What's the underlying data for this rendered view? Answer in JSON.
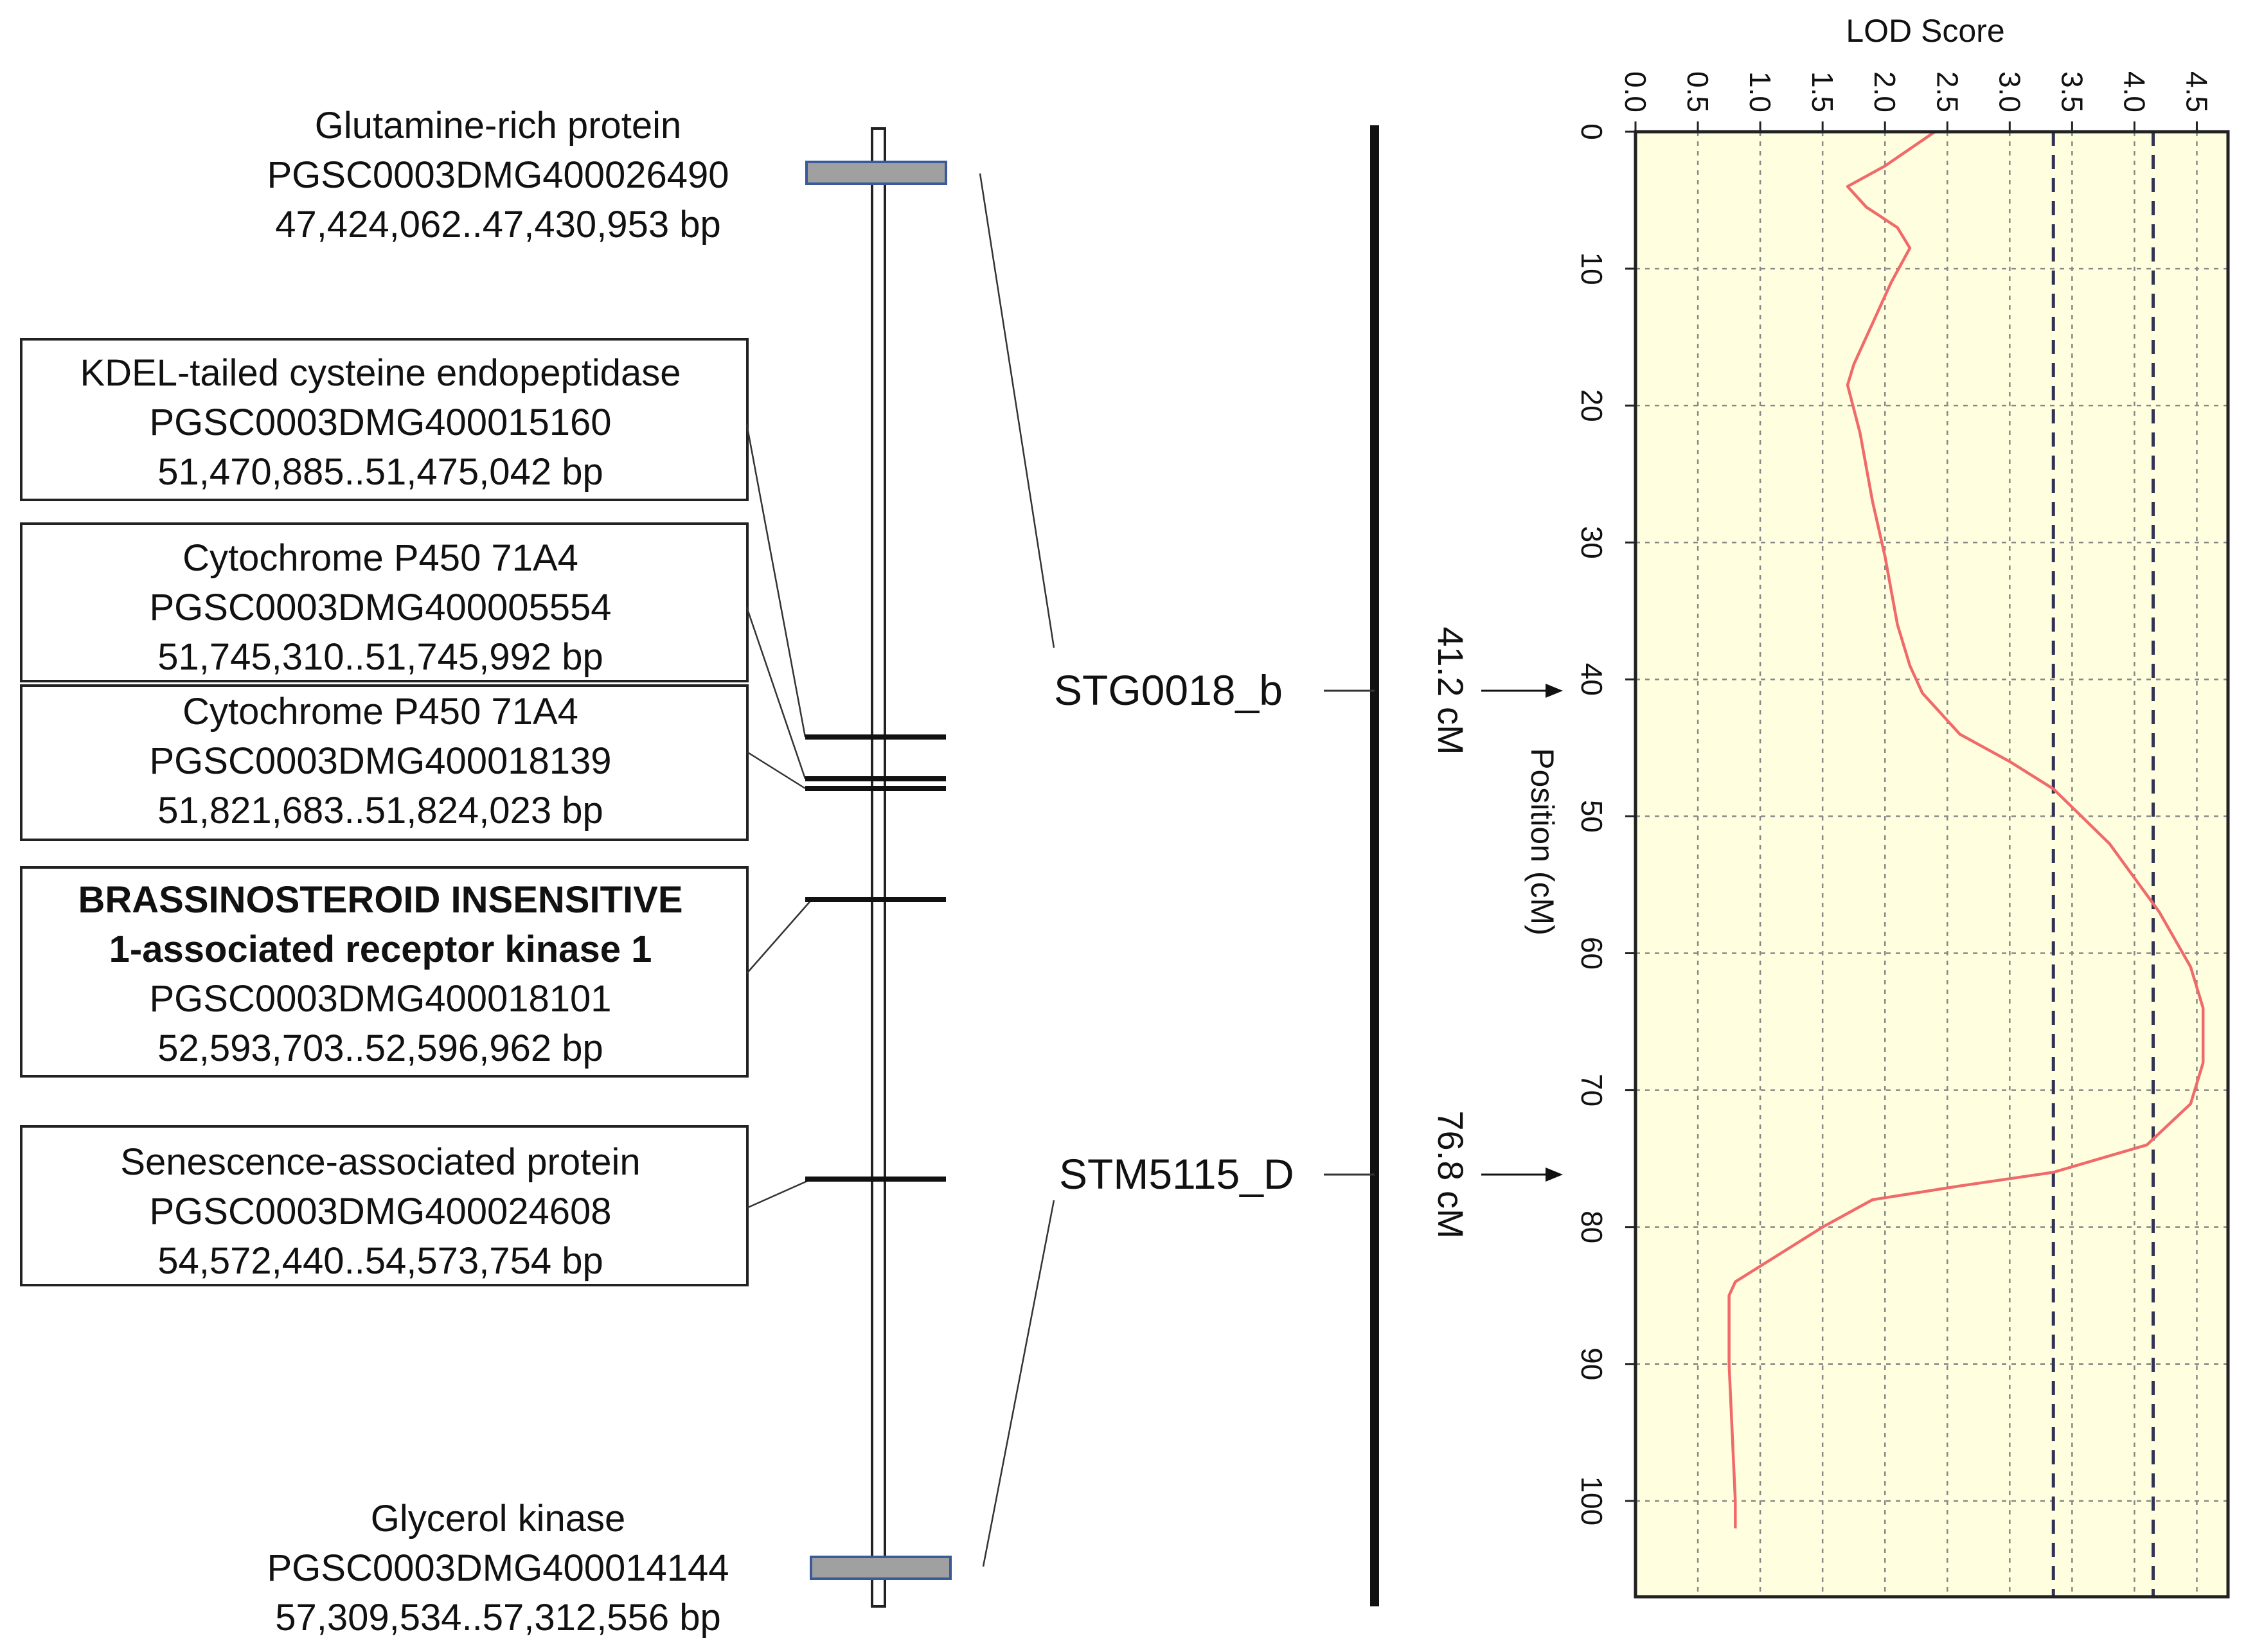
{
  "genes": [
    {
      "lines": [
        "Glutamine-rich protein",
        "PGSC0003DMG400026490",
        "47,424,062..47,430,953 bp"
      ],
      "boxed": false
    },
    {
      "lines": [
        "KDEL-tailed cysteine endopeptidase",
        "PGSC0003DMG400015160",
        "51,470,885..51,475,042 bp"
      ],
      "boxed": true
    },
    {
      "lines": [
        "Cytochrome P450 71A4",
        "PGSC0003DMG400005554",
        "51,745,310..51,745,992 bp"
      ],
      "boxed": true
    },
    {
      "lines": [
        "Cytochrome P450 71A4",
        "PGSC0003DMG400018139",
        "51,821,683..51,824,023 bp"
      ],
      "boxed": true
    },
    {
      "lines": [
        "BRASSINOSTEROID INSENSITIVE",
        "1-associated receptor kinase 1",
        "PGSC0003DMG400018101",
        "52,593,703..52,596,962 bp"
      ],
      "boxed": true,
      "bold_lines": 2
    },
    {
      "lines": [
        "Senescence-associated protein",
        "PGSC0003DMG400024608",
        "54,572,440..54,573,754 bp"
      ],
      "boxed": true
    },
    {
      "lines": [
        "Glycerol kinase",
        "PGSC0003DMG400014144",
        "57,309,534..57,312,556 bp"
      ],
      "boxed": false
    }
  ],
  "markers": [
    {
      "name": "STG0018_b",
      "position": "41.2 cM"
    },
    {
      "name": "STM5115_D",
      "position": "76.8 cM"
    }
  ],
  "colors": {
    "plot_bg": "#ffffe0",
    "lod_curve": "#f06a6a",
    "grid": "#888888",
    "gene_bar_fill": "#a0a0a0",
    "gene_bar_stroke": "#3a5a9a"
  },
  "chart_data": {
    "type": "line",
    "orientation": "vertical",
    "xlabel": "LOD Score",
    "ylabel": "Position (cM)",
    "xlim": [
      0,
      4.75
    ],
    "ylim": [
      0,
      107
    ],
    "x_ticks": [
      "0.0",
      "0.5",
      "1.0",
      "1.5",
      "2.0",
      "2.5",
      "3.0",
      "3.5",
      "4.0",
      "4.5"
    ],
    "y_ticks": [
      "0",
      "10",
      "20",
      "30",
      "40",
      "50",
      "60",
      "70",
      "80",
      "90",
      "100"
    ],
    "thresholds": [
      3.35,
      4.15
    ],
    "grid": true,
    "series": [
      {
        "lod": [
          2.4,
          2.0,
          1.7,
          1.85,
          2.1,
          2.2,
          2.05,
          1.9,
          1.75,
          1.7,
          1.8,
          1.9,
          2.0,
          2.1,
          2.2,
          2.3,
          2.4,
          2.6,
          3.0,
          3.35,
          3.8,
          4.2,
          4.45,
          4.55,
          4.55,
          4.45,
          4.1,
          3.35,
          2.6,
          1.9,
          1.5,
          0.8,
          0.75,
          0.75,
          0.8,
          0.8
        ],
        "position": [
          0,
          2.5,
          4,
          5.5,
          7,
          8.5,
          11,
          14,
          17,
          18.5,
          22,
          27,
          31,
          36,
          39,
          41,
          42,
          44,
          46,
          48,
          52,
          57,
          61,
          64,
          68,
          71,
          74,
          76,
          77,
          78,
          80,
          84,
          85,
          90,
          100,
          102
        ]
      }
    ]
  }
}
